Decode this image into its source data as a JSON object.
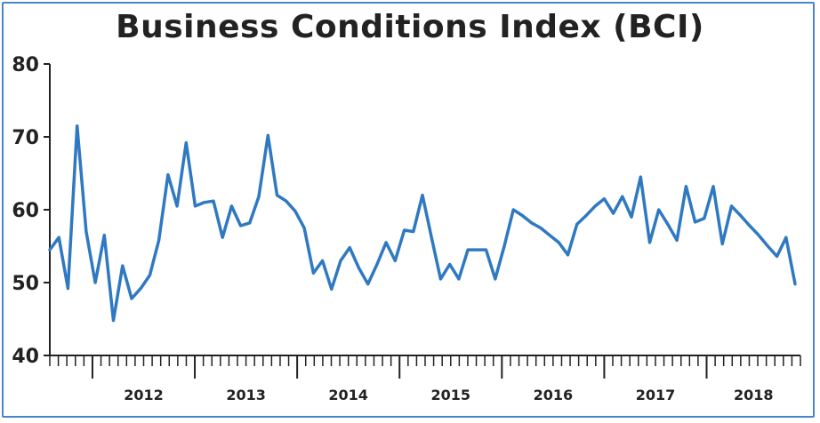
{
  "chart_data": {
    "type": "line",
    "title": "Business Conditions Index (BCI)",
    "xlabel": "",
    "ylabel": "",
    "ylim": [
      40,
      80
    ],
    "yticks": [
      40,
      50,
      60,
      70,
      80
    ],
    "year_labels": [
      "2012",
      "2013",
      "2014",
      "2015",
      "2016",
      "2017",
      "2018"
    ],
    "grid": false,
    "line_color": "#2f79c2",
    "series": [
      {
        "values": [
          54.5,
          56.2,
          49.2,
          71.5,
          57.0,
          50.0,
          56.5,
          44.8,
          52.3,
          47.8,
          49.2,
          51.0,
          55.8,
          64.8,
          60.5,
          69.2,
          60.5,
          61.0,
          61.2,
          56.2,
          60.5,
          57.8,
          58.2,
          61.8,
          70.2,
          62.0,
          61.2,
          59.8,
          57.5,
          51.3,
          53.0,
          49.1,
          53.0,
          54.8,
          52.0,
          49.8,
          52.5,
          55.5,
          53.0,
          57.2,
          57.0,
          62.0,
          56.2,
          50.5,
          52.5,
          50.5,
          54.5,
          54.5,
          54.5,
          50.5,
          55.0,
          60.0,
          59.2,
          58.2,
          57.5,
          56.5,
          55.5,
          53.8,
          58.0,
          59.2,
          60.5,
          61.5,
          59.5,
          61.8,
          59.0,
          64.5,
          55.5,
          60.0,
          58.0,
          55.8,
          63.2,
          58.3,
          58.8,
          63.2,
          55.3,
          60.5,
          59.2,
          57.8,
          56.5,
          55.0,
          53.6,
          56.2,
          49.8
        ]
      }
    ]
  }
}
